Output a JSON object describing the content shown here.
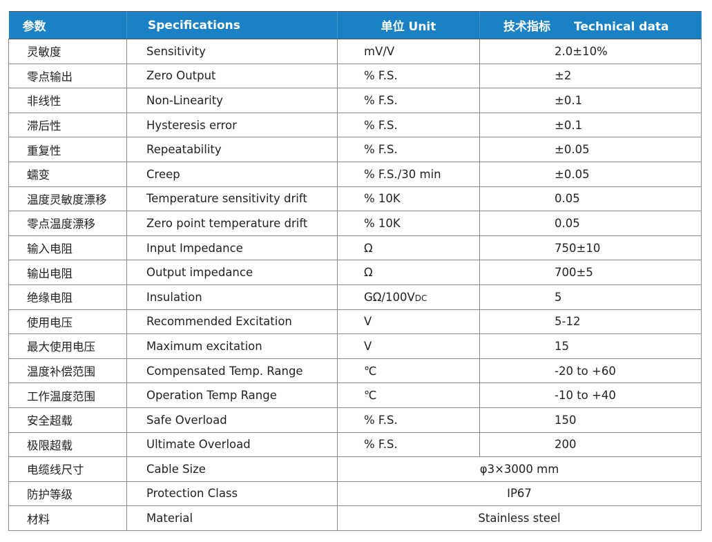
{
  "header": {
    "param": "参数",
    "spec": "Specifications",
    "unit": "单位 Unit",
    "tech": "技术指标　　Technical data"
  },
  "header_color": "#1a82c4",
  "rows": [
    {
      "cn": "灵敏度",
      "en": "Sensitivity",
      "unit": "mV/V",
      "value": "2.0±10%"
    },
    {
      "cn": "零点输出",
      "en": "Zero Output",
      "unit": "% F.S.",
      "value": "±2"
    },
    {
      "cn": "非线性",
      "en": "Non-Linearity",
      "unit": "% F.S.",
      "value": "±0.1"
    },
    {
      "cn": "滞后性",
      "en": "Hysteresis error",
      "unit": "% F.S.",
      "value": "±0.1"
    },
    {
      "cn": "重复性",
      "en": "Repeatability",
      "unit": "% F.S.",
      "value": "±0.05"
    },
    {
      "cn": "蠕变",
      "en": "Creep",
      "unit": "% F.S./30 min",
      "value": "±0.05"
    },
    {
      "cn": "温度灵敏度漂移",
      "en": "Temperature sensitivity drift",
      "unit": "% 10K",
      "value": "0.05"
    },
    {
      "cn": "零点温度漂移",
      "en": "Zero point temperature drift",
      "unit": "% 10K",
      "value": "0.05"
    },
    {
      "cn": "输入电阻",
      "en": "Input Impedance",
      "unit": "Ω",
      "value": "750±10"
    },
    {
      "cn": "输出电阻",
      "en": "Output impedance",
      "unit": "Ω",
      "value": "700±5"
    },
    {
      "cn": "绝缘电阻",
      "en": "Insulation",
      "unit": "GΩ/100V",
      "unit_sub": "DC",
      "value": "5"
    },
    {
      "cn": "使用电压",
      "en": "Recommended Excitation",
      "unit": "V",
      "value": "5-12"
    },
    {
      "cn": "最大使用电压",
      "en": "Maximum excitation",
      "unit": "V",
      "value": "15"
    },
    {
      "cn": "温度补偿范围",
      "en": "Compensated Temp. Range",
      "unit": "℃",
      "value": "-20 to +60"
    },
    {
      "cn": "工作温度范围",
      "en": "Operation Temp Range",
      "unit": "℃",
      "value": "-10 to +40"
    },
    {
      "cn": "安全超载",
      "en": "Safe Overload",
      "unit": "% F.S.",
      "value": "150"
    },
    {
      "cn": "极限超载",
      "en": "Ultimate Overload",
      "unit": "% F.S.",
      "value": "200"
    },
    {
      "cn": "电缆线尺寸",
      "en": "Cable Size",
      "merged": "φ3×3000 mm"
    },
    {
      "cn": "防护等级",
      "en": "Protection Class",
      "merged": "IP67"
    },
    {
      "cn": "材料",
      "en": "Material",
      "merged": "Stainless steel"
    }
  ]
}
